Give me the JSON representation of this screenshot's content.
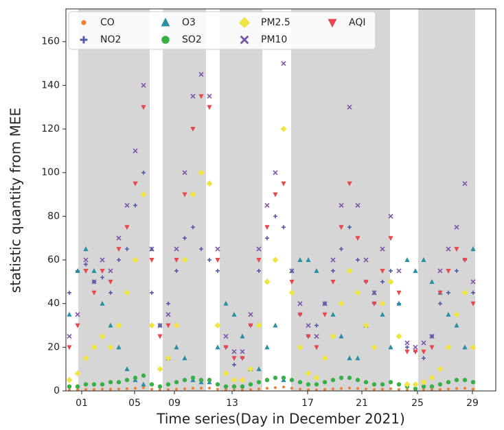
{
  "chart_data": {
    "type": "scatter",
    "x_label": "Time series(Day in December 2021)",
    "y_label": "statistic quantity from MEE",
    "xlim": [
      0,
      626
    ],
    "ylim": [
      0,
      175
    ],
    "xticks": [
      {
        "value": 23,
        "label": "01"
      },
      {
        "value": 100,
        "label": "05"
      },
      {
        "value": 158,
        "label": "09"
      },
      {
        "value": 242,
        "label": "13"
      },
      {
        "value": 352,
        "label": "17"
      },
      {
        "value": 431,
        "label": "21"
      },
      {
        "value": 512,
        "label": "25"
      },
      {
        "value": 592,
        "label": "29"
      }
    ],
    "yticks": [
      0,
      20,
      40,
      60,
      80,
      100,
      120,
      140,
      160
    ],
    "shaded_spans": [
      [
        18,
        122
      ],
      [
        141,
        204
      ],
      [
        224,
        286
      ],
      [
        328,
        472
      ],
      [
        513,
        596
      ]
    ],
    "shade_color": "#d6d6d6",
    "legend_position": "upper left",
    "x": [
      5,
      17,
      29,
      41,
      53,
      65,
      77,
      89,
      101,
      113,
      125,
      137,
      149,
      161,
      173,
      185,
      197,
      209,
      221,
      233,
      245,
      257,
      269,
      281,
      293,
      305,
      317,
      329,
      341,
      353,
      365,
      377,
      389,
      401,
      413,
      425,
      437,
      449,
      461,
      473,
      485,
      497,
      509,
      521,
      533,
      545,
      557,
      569,
      581,
      593
    ],
    "series": [
      {
        "name": "CO",
        "color": "#f07f2f",
        "marker": "circle-small",
        "values": [
          0.5,
          0.6,
          0.7,
          0.7,
          0.8,
          0.8,
          0.9,
          1,
          1.2,
          1.5,
          0.8,
          0.5,
          0.6,
          0.8,
          1,
          1.2,
          1.3,
          1.3,
          0.8,
          0.5,
          0.4,
          0.4,
          0.6,
          0.9,
          1.2,
          1.5,
          1.8,
          1.2,
          0.8,
          0.6,
          0.5,
          0.7,
          0.9,
          1.1,
          1.3,
          1.1,
          0.9,
          0.7,
          0.8,
          1,
          0.7,
          0.4,
          0.4,
          0.4,
          0.5,
          0.7,
          0.9,
          1.1,
          1.2,
          0.8
        ]
      },
      {
        "name": "NO2",
        "color": "#4e5aa8",
        "marker": "plus",
        "values": [
          45,
          55,
          58,
          50,
          52,
          45,
          60,
          65,
          85,
          100,
          45,
          30,
          40,
          55,
          70,
          75,
          65,
          60,
          55,
          20,
          12,
          15,
          30,
          55,
          70,
          80,
          75,
          45,
          35,
          25,
          30,
          40,
          55,
          65,
          75,
          60,
          50,
          40,
          50,
          55,
          40,
          20,
          18,
          15,
          25,
          40,
          45,
          55,
          60,
          45
        ]
      },
      {
        "name": "O3",
        "color": "#2a8fa0",
        "marker": "triangle-up",
        "values": [
          35,
          55,
          65,
          55,
          40,
          30,
          20,
          10,
          5,
          3,
          65,
          30,
          15,
          20,
          15,
          5,
          4,
          4,
          20,
          40,
          35,
          25,
          10,
          10,
          20,
          30,
          5,
          55,
          60,
          60,
          55,
          40,
          35,
          25,
          15,
          15,
          30,
          45,
          35,
          20,
          40,
          60,
          55,
          60,
          50,
          45,
          35,
          30,
          20,
          65
        ]
      },
      {
        "name": "SO2",
        "color": "#3aae48",
        "marker": "circle",
        "values": [
          2,
          2,
          3,
          3,
          3,
          4,
          4,
          5,
          6,
          7,
          3,
          2,
          3,
          4,
          5,
          6,
          5,
          5,
          3,
          2,
          2,
          2,
          3,
          4,
          5,
          6,
          6,
          5,
          4,
          3,
          3,
          4,
          5,
          6,
          6,
          5,
          4,
          3,
          3,
          4,
          3,
          2,
          1,
          2,
          2,
          3,
          4,
          5,
          5,
          4
        ]
      },
      {
        "name": "PM2.5",
        "color": "#f0e442",
        "marker": "diamond",
        "values": [
          5,
          8,
          15,
          20,
          25,
          20,
          30,
          45,
          60,
          90,
          30,
          10,
          15,
          30,
          60,
          90,
          100,
          95,
          30,
          8,
          5,
          5,
          10,
          30,
          50,
          60,
          120,
          45,
          20,
          8,
          6,
          15,
          25,
          40,
          55,
          45,
          30,
          20,
          40,
          50,
          25,
          3,
          3,
          4,
          6,
          10,
          20,
          35,
          45,
          20
        ]
      },
      {
        "name": "PM10",
        "color": "#7b55a8",
        "marker": "x",
        "values": [
          25,
          35,
          60,
          50,
          60,
          55,
          70,
          85,
          110,
          140,
          65,
          30,
          35,
          65,
          100,
          135,
          145,
          135,
          65,
          25,
          18,
          18,
          35,
          65,
          85,
          100,
          150,
          55,
          40,
          30,
          25,
          40,
          60,
          85,
          130,
          85,
          60,
          45,
          65,
          80,
          55,
          22,
          20,
          22,
          25,
          55,
          65,
          75,
          95,
          50
        ]
      },
      {
        "name": "AQI",
        "color": "#e8474c",
        "marker": "triangle-down",
        "values": [
          20,
          30,
          55,
          45,
          55,
          50,
          65,
          75,
          95,
          130,
          60,
          25,
          30,
          60,
          90,
          120,
          135,
          130,
          60,
          20,
          15,
          15,
          30,
          60,
          75,
          90,
          95,
          50,
          35,
          25,
          20,
          35,
          50,
          75,
          95,
          70,
          50,
          40,
          55,
          70,
          45,
          18,
          18,
          18,
          20,
          45,
          55,
          65,
          60,
          40
        ]
      }
    ]
  }
}
